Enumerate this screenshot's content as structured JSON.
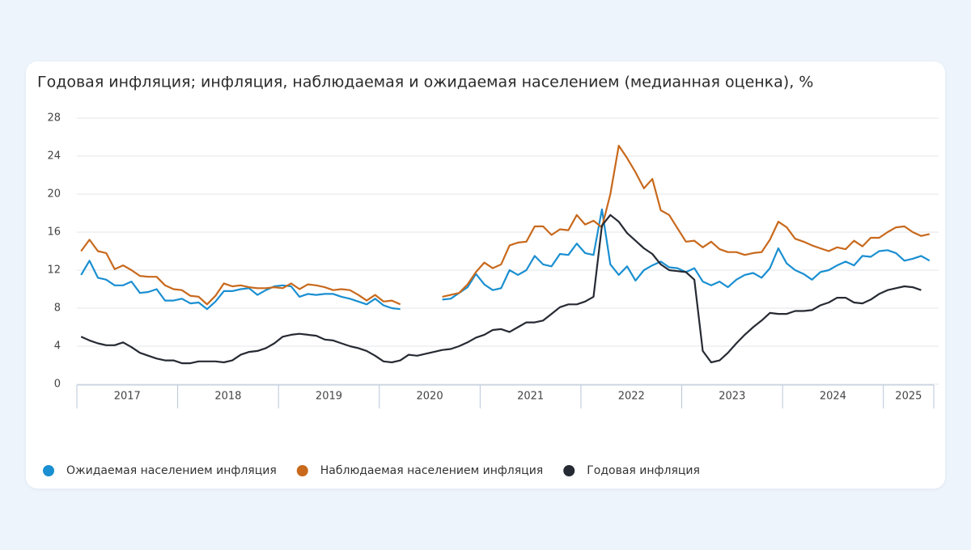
{
  "chart_data": {
    "type": "line",
    "title": "Годовая инфляция; инфляция, наблюдаемая и ожидаемая населением (медианная оценка), %",
    "categories": [
      "2017",
      null,
      null,
      null,
      null,
      null,
      null,
      null,
      null,
      null,
      null,
      null,
      "2018",
      null,
      null,
      null,
      null,
      null,
      null,
      null,
      null,
      null,
      null,
      null,
      "2019",
      null,
      null,
      null,
      null,
      null,
      null,
      null,
      null,
      null,
      null,
      null,
      "2020",
      null,
      null,
      null,
      null,
      null,
      null,
      null,
      null,
      null,
      null,
      null,
      "2021",
      null,
      null,
      null,
      null,
      null,
      null,
      null,
      null,
      null,
      null,
      null,
      "2022",
      null,
      null,
      null,
      null,
      null,
      null,
      null,
      null,
      null,
      null,
      null,
      "2023",
      null,
      null,
      null,
      null,
      null,
      null,
      null,
      null,
      null,
      null,
      null,
      "2024",
      null,
      null,
      null,
      null,
      null,
      null,
      null,
      null,
      null,
      null,
      null,
      "2025",
      null,
      null,
      null,
      null,
      null
    ],
    "ylim": [
      0,
      28
    ],
    "yticks": [
      0,
      4,
      8,
      12,
      16,
      20,
      24,
      28
    ],
    "grid": true,
    "legend": "bottom",
    "series": [
      {
        "name": "Ожидаемая населением инфляция",
        "color": "#1a8fd1",
        "values": [
          11.5,
          13.0,
          11.2,
          11.0,
          10.4,
          10.4,
          10.8,
          9.6,
          9.7,
          10.0,
          8.8,
          8.8,
          9.0,
          8.5,
          8.6,
          7.9,
          8.7,
          9.8,
          9.8,
          10.0,
          10.1,
          9.4,
          9.9,
          10.3,
          10.4,
          10.3,
          9.2,
          9.5,
          9.4,
          9.5,
          9.5,
          9.2,
          9.0,
          8.7,
          8.4,
          9.0,
          8.3,
          8.0,
          7.9,
          null,
          null,
          null,
          null,
          8.9,
          9.0,
          9.6,
          10.2,
          11.6,
          10.5,
          9.9,
          10.1,
          12.0,
          11.5,
          12.0,
          13.5,
          12.6,
          12.4,
          13.7,
          13.6,
          14.8,
          13.8,
          13.6,
          18.4,
          12.6,
          11.5,
          12.4,
          10.9,
          12.0,
          12.5,
          12.9,
          12.3,
          12.2,
          11.8,
          12.2,
          10.8,
          10.4,
          10.8,
          10.2,
          11.0,
          11.5,
          11.7,
          11.2,
          12.2,
          14.3,
          12.7,
          12.0,
          11.6,
          11.0,
          11.8,
          12.0,
          12.5,
          12.9,
          12.5,
          13.5,
          13.4,
          14.0,
          14.1,
          13.8,
          13.0,
          13.2,
          13.5,
          13.0
        ]
      },
      {
        "name": "Наблюдаемая населением инфляция",
        "color": "#c8691c",
        "values": [
          14.0,
          15.2,
          14.0,
          13.8,
          12.1,
          12.5,
          12.0,
          11.4,
          11.3,
          11.3,
          10.4,
          10.0,
          9.9,
          9.3,
          9.2,
          8.4,
          9.3,
          10.6,
          10.3,
          10.4,
          10.2,
          10.1,
          10.1,
          10.2,
          10.1,
          10.6,
          10.0,
          10.5,
          10.4,
          10.2,
          9.9,
          10.0,
          9.9,
          9.4,
          8.8,
          9.4,
          8.7,
          8.8,
          8.4,
          null,
          null,
          null,
          null,
          9.2,
          9.4,
          9.6,
          10.5,
          11.8,
          12.8,
          12.2,
          12.6,
          14.6,
          14.9,
          15.0,
          16.6,
          16.6,
          15.7,
          16.3,
          16.2,
          17.8,
          16.8,
          17.2,
          16.5,
          20.0,
          25.1,
          23.8,
          22.3,
          20.6,
          21.6,
          18.3,
          17.8,
          16.4,
          15.0,
          15.1,
          14.4,
          15.0,
          14.2,
          13.9,
          13.9,
          13.6,
          13.8,
          13.9,
          15.2,
          17.1,
          16.5,
          15.3,
          15.0,
          14.6,
          14.3,
          14.0,
          14.4,
          14.2,
          15.1,
          14.5,
          15.4,
          15.4,
          16.0,
          16.5,
          16.6,
          16.0,
          15.6,
          15.8
        ]
      },
      {
        "name": "Годовая инфляция",
        "color": "#262a33",
        "values": [
          5.0,
          4.6,
          4.3,
          4.1,
          4.1,
          4.4,
          3.9,
          3.3,
          3.0,
          2.7,
          2.5,
          2.5,
          2.2,
          2.2,
          2.4,
          2.4,
          2.4,
          2.3,
          2.5,
          3.1,
          3.4,
          3.5,
          3.8,
          4.3,
          5.0,
          5.2,
          5.3,
          5.2,
          5.1,
          4.7,
          4.6,
          4.3,
          4.0,
          3.8,
          3.5,
          3.0,
          2.4,
          2.3,
          2.5,
          3.1,
          3.0,
          3.2,
          3.4,
          3.6,
          3.7,
          4.0,
          4.4,
          4.9,
          5.2,
          5.7,
          5.8,
          5.5,
          6.0,
          6.5,
          6.5,
          6.7,
          7.4,
          8.1,
          8.4,
          8.4,
          8.7,
          9.2,
          16.7,
          17.8,
          17.1,
          15.9,
          15.1,
          14.3,
          13.7,
          12.6,
          12.0,
          11.9,
          11.8,
          11.0,
          3.5,
          2.3,
          2.5,
          3.3,
          4.3,
          5.2,
          6.0,
          6.7,
          7.5,
          7.4,
          7.4,
          7.7,
          7.7,
          7.8,
          8.3,
          8.6,
          9.1,
          9.1,
          8.6,
          8.5,
          8.9,
          9.5,
          9.9,
          10.1,
          10.3,
          10.2,
          9.9,
          null
        ]
      }
    ]
  }
}
